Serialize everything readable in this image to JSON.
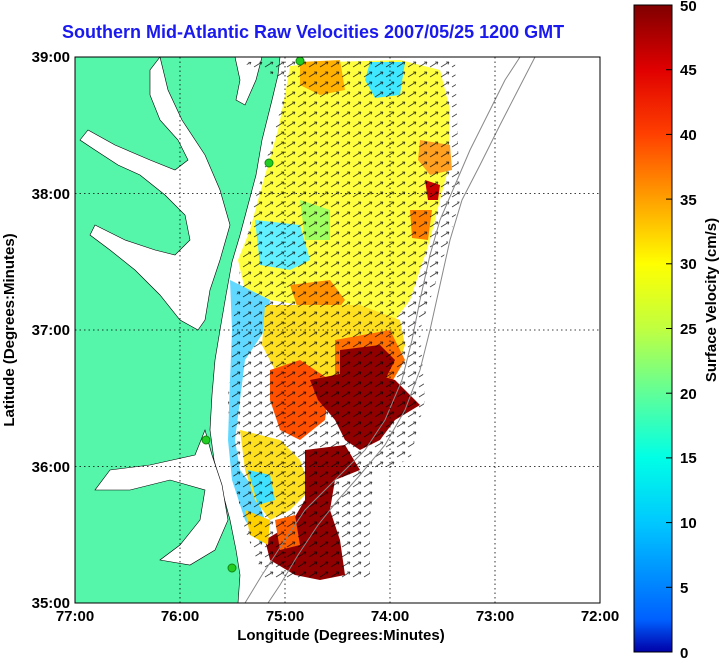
{
  "title": "Southern Mid-Atlantic Raw Velocities 2007/05/25 1200 GMT",
  "map": {
    "xlabel": "Longitude (Degrees:Minutes)",
    "ylabel": "Latitude (Degrees:Minutes)",
    "lon_ticks": [
      "77:00",
      "76:00",
      "75:00",
      "74:00",
      "73:00",
      "72:00"
    ],
    "lat_ticks": [
      "39:00",
      "38:00",
      "37:00",
      "36:00",
      "35:00"
    ],
    "lon_range": [
      -77,
      -72
    ],
    "lat_range": [
      35,
      39
    ],
    "land_color": "#55f5aa",
    "station_color": "#22cc22"
  },
  "colorbar": {
    "label": "Surface Velocity (cm/s)",
    "ticks": [
      "0",
      "5",
      "10",
      "15",
      "20",
      "25",
      "30",
      "35",
      "40",
      "45",
      "50"
    ],
    "range": [
      0,
      50
    ]
  }
}
